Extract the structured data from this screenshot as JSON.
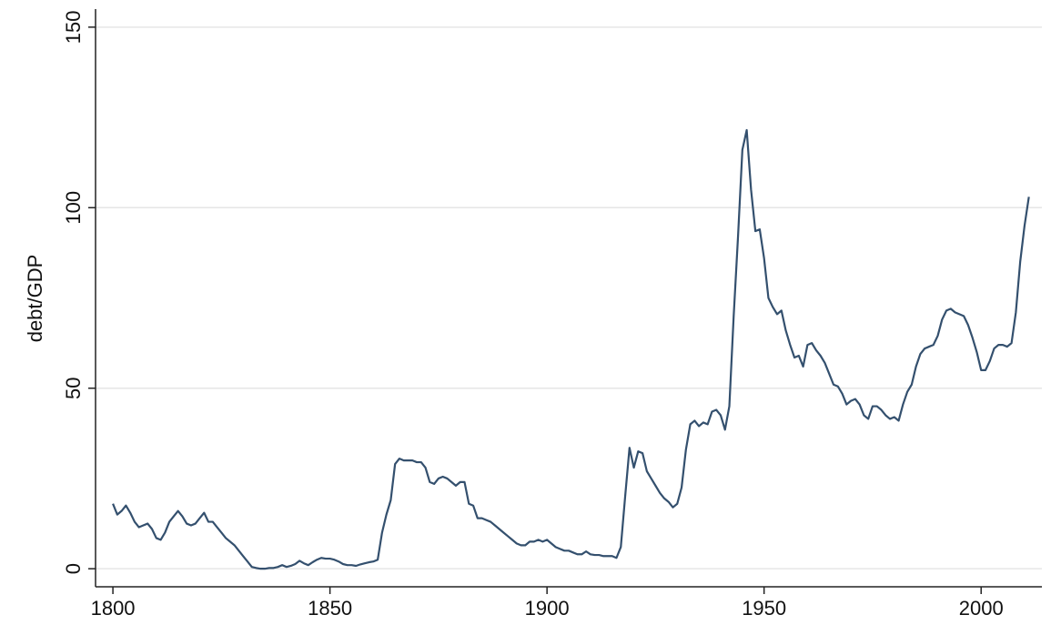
{
  "chart_data": {
    "type": "line",
    "y_label": "debt/GDP",
    "x": [
      1800,
      1801,
      1802,
      1803,
      1804,
      1805,
      1806,
      1807,
      1808,
      1809,
      1810,
      1811,
      1812,
      1813,
      1814,
      1815,
      1816,
      1817,
      1818,
      1819,
      1820,
      1821,
      1822,
      1823,
      1824,
      1825,
      1826,
      1827,
      1828,
      1829,
      1830,
      1831,
      1832,
      1833,
      1834,
      1835,
      1836,
      1837,
      1838,
      1839,
      1840,
      1841,
      1842,
      1843,
      1844,
      1845,
      1846,
      1847,
      1848,
      1849,
      1850,
      1851,
      1852,
      1853,
      1854,
      1855,
      1856,
      1857,
      1858,
      1859,
      1860,
      1861,
      1862,
      1863,
      1864,
      1865,
      1866,
      1867,
      1868,
      1869,
      1870,
      1871,
      1872,
      1873,
      1874,
      1875,
      1876,
      1877,
      1878,
      1879,
      1880,
      1881,
      1882,
      1883,
      1884,
      1885,
      1886,
      1887,
      1888,
      1889,
      1890,
      1891,
      1892,
      1893,
      1894,
      1895,
      1896,
      1897,
      1898,
      1899,
      1900,
      1901,
      1902,
      1903,
      1904,
      1905,
      1906,
      1907,
      1908,
      1909,
      1910,
      1911,
      1912,
      1913,
      1914,
      1915,
      1916,
      1917,
      1918,
      1919,
      1920,
      1921,
      1922,
      1923,
      1924,
      1925,
      1926,
      1927,
      1928,
      1929,
      1930,
      1931,
      1932,
      1933,
      1934,
      1935,
      1936,
      1937,
      1938,
      1939,
      1940,
      1941,
      1942,
      1943,
      1944,
      1945,
      1946,
      1947,
      1948,
      1949,
      1950,
      1951,
      1952,
      1953,
      1954,
      1955,
      1956,
      1957,
      1958,
      1959,
      1960,
      1961,
      1962,
      1963,
      1964,
      1965,
      1966,
      1967,
      1968,
      1969,
      1970,
      1971,
      1972,
      1973,
      1974,
      1975,
      1976,
      1977,
      1978,
      1979,
      1980,
      1981,
      1982,
      1983,
      1984,
      1985,
      1986,
      1987,
      1988,
      1989,
      1990,
      1991,
      1992,
      1993,
      1994,
      1995,
      1996,
      1997,
      1998,
      1999,
      2000,
      2001,
      2002,
      2003,
      2004,
      2005,
      2006,
      2007,
      2008,
      2009,
      2010,
      2011
    ],
    "series": [
      {
        "color": "#34506e",
        "values": [
          18,
          15,
          16,
          17.5,
          15.5,
          13,
          11.5,
          12,
          12.5,
          11,
          8.5,
          8,
          10,
          13,
          14.5,
          16,
          14.5,
          12.5,
          12,
          12.5,
          14,
          15.5,
          13,
          13,
          11.5,
          10,
          8.5,
          7.5,
          6.5,
          5,
          3.5,
          2,
          0.5,
          0.2,
          0,
          0,
          0.2,
          0.2,
          0.5,
          1,
          0.5,
          0.8,
          1.3,
          2.2,
          1.5,
          1,
          1.8,
          2.5,
          3,
          2.8,
          2.8,
          2.5,
          2,
          1.3,
          1,
          1,
          0.8,
          1.2,
          1.5,
          1.8,
          2,
          2.5,
          10,
          15,
          19,
          29,
          30.5,
          30,
          30,
          30,
          29.5,
          29.5,
          28,
          24,
          23.5,
          25,
          25.5,
          25,
          24,
          23,
          24,
          24,
          18,
          17.5,
          14,
          14,
          13.5,
          13,
          12,
          11,
          10,
          9,
          8,
          7,
          6.5,
          6.5,
          7.5,
          7.5,
          8,
          7.5,
          8,
          7,
          6,
          5.5,
          5,
          5,
          4.5,
          4,
          4,
          4.8,
          4,
          3.8,
          3.8,
          3.5,
          3.5,
          3.5,
          3,
          6,
          20,
          33.5,
          28,
          32.5,
          32,
          27,
          25,
          23,
          21,
          19.5,
          18.5,
          17,
          18,
          22.5,
          33,
          40,
          41,
          39.5,
          40.5,
          40,
          43.5,
          44,
          42.5,
          38.5,
          45,
          70,
          92,
          116,
          121.5,
          105,
          93.5,
          94,
          86,
          75,
          72.5,
          70.5,
          71.5,
          66,
          62,
          58.5,
          59,
          56,
          62,
          62.5,
          60.5,
          59,
          57,
          54,
          51,
          50.5,
          48.5,
          45.5,
          46.5,
          47,
          45.5,
          42.5,
          41.5,
          45,
          45,
          44,
          42.5,
          41.5,
          42,
          41,
          45.5,
          49,
          51,
          56,
          59.5,
          61,
          61.5,
          62,
          64.5,
          69,
          71.5,
          72,
          71,
          70.5,
          70,
          67.5,
          64,
          60,
          55,
          55,
          57.5,
          61,
          62,
          62,
          61.5,
          62.5,
          71,
          85,
          95,
          103
        ]
      }
    ],
    "xlim": [
      1796,
      2014
    ],
    "ylim": [
      -5,
      155
    ],
    "xticks": [
      1800,
      1850,
      1900,
      1950,
      2000
    ],
    "yticks": [
      0,
      50,
      100,
      150
    ],
    "grid": true
  }
}
